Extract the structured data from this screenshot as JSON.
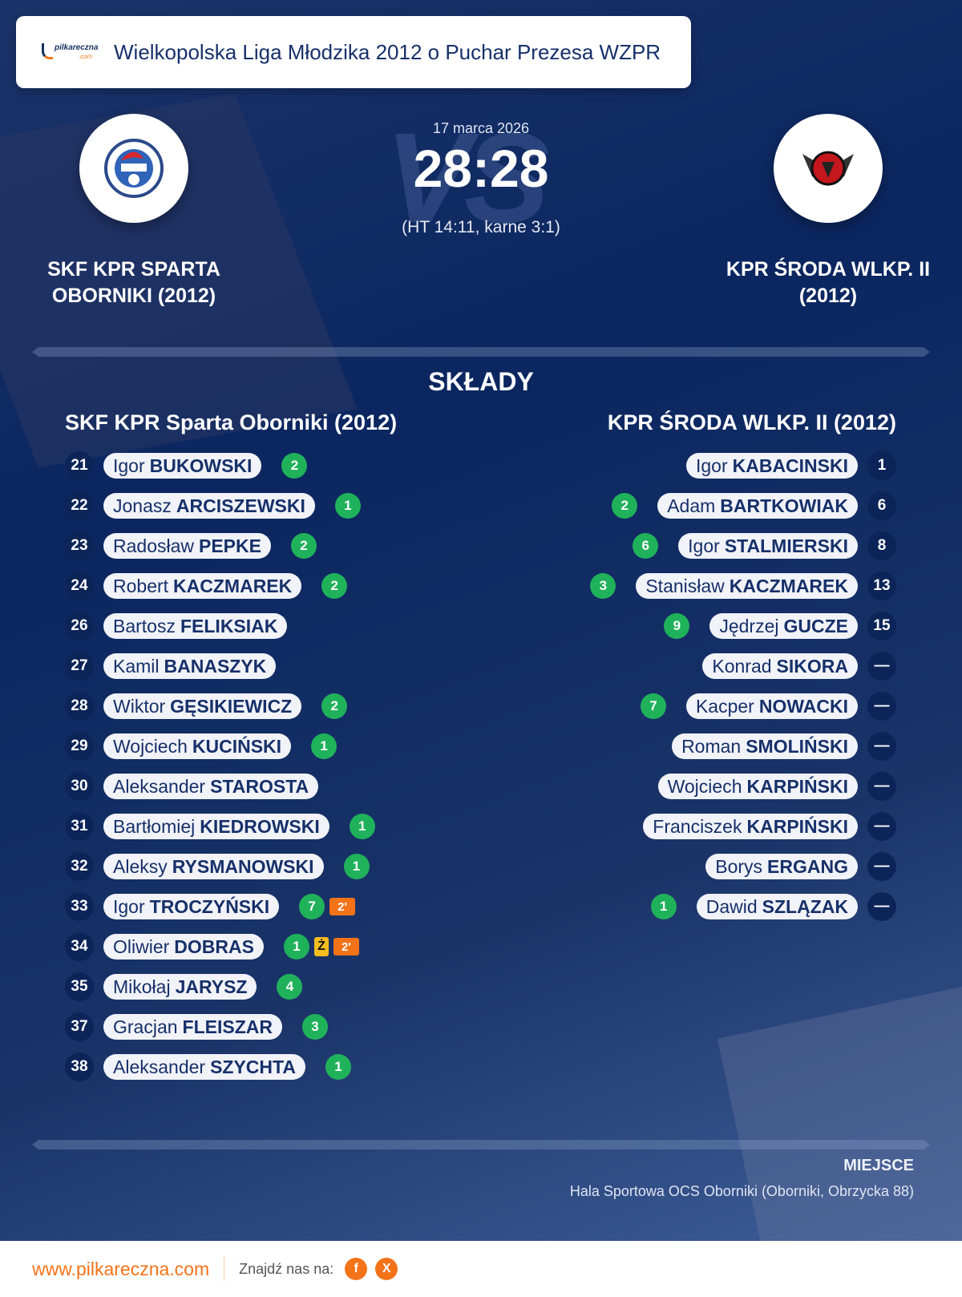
{
  "header": {
    "league": "Wielkopolska Liga Młodzika 2012 o Puchar Prezesa WZPR",
    "logo_text": "pilkareczna",
    "logo_sub": ".com"
  },
  "match": {
    "date": "17 marca 2026",
    "score": "28:28",
    "detail": "(HT 14:11, karne 3:1)",
    "vs": "VS",
    "home": {
      "name_line1": "SKF KPR SPARTA",
      "name_line2": "OBORNIKI (2012)"
    },
    "away": {
      "name_line1": "KPR ŚRODA WLKP. II",
      "name_line2": "(2012)"
    }
  },
  "lineups": {
    "title": "SKŁADY",
    "home_title": "SKF KPR Sparta Oborniki (2012)",
    "away_title": "KPR ŚRODA WLKP. II (2012)",
    "home": [
      {
        "no": "21",
        "first": "Igor",
        "last": "BUKOWSKI",
        "goals": "2"
      },
      {
        "no": "22",
        "first": "Jonasz",
        "last": "ARCISZEWSKI",
        "goals": "1"
      },
      {
        "no": "23",
        "first": "Radosław",
        "last": "PEPKE",
        "goals": "2"
      },
      {
        "no": "24",
        "first": "Robert",
        "last": "KACZMAREK",
        "goals": "2"
      },
      {
        "no": "26",
        "first": "Bartosz",
        "last": "FELIKSIAK"
      },
      {
        "no": "27",
        "first": "Kamil",
        "last": "BANASZYK"
      },
      {
        "no": "28",
        "first": "Wiktor",
        "last": "GĘSIKIEWICZ",
        "goals": "2"
      },
      {
        "no": "29",
        "first": "Wojciech",
        "last": "KUCIŃSKI",
        "goals": "1"
      },
      {
        "no": "30",
        "first": "Aleksander",
        "last": "STAROSTA"
      },
      {
        "no": "31",
        "first": "Bartłomiej",
        "last": "KIEDROWSKI",
        "goals": "1"
      },
      {
        "no": "32",
        "first": "Aleksy",
        "last": "RYSMANOWSKI",
        "goals": "1"
      },
      {
        "no": "33",
        "first": "Igor",
        "last": "TROCZYŃSKI",
        "goals": "7",
        "suspension": "2'"
      },
      {
        "no": "34",
        "first": "Oliwier",
        "last": "DOBRAS",
        "goals": "1",
        "yellow": "Ż",
        "suspension": "2'"
      },
      {
        "no": "35",
        "first": "Mikołaj",
        "last": "JARYSZ",
        "goals": "4"
      },
      {
        "no": "37",
        "first": "Gracjan",
        "last": "FLEISZAR",
        "goals": "3"
      },
      {
        "no": "38",
        "first": "Aleksander",
        "last": "SZYCHTA",
        "goals": "1"
      }
    ],
    "away": [
      {
        "no": "1",
        "first": "Igor",
        "last": "KABACINSKI"
      },
      {
        "no": "6",
        "first": "Adam",
        "last": "BARTKOWIAK",
        "goals": "2"
      },
      {
        "no": "8",
        "first": "Igor",
        "last": "STALMIERSKI",
        "goals": "6"
      },
      {
        "no": "13",
        "first": "Stanisław",
        "last": "KACZMAREK",
        "goals": "3"
      },
      {
        "no": "15",
        "first": "Jędrzej",
        "last": "GUCZE",
        "goals": "9"
      },
      {
        "no": "—",
        "first": "Konrad",
        "last": "SIKORA"
      },
      {
        "no": "—",
        "first": "Kacper",
        "last": "NOWACKI",
        "goals": "7"
      },
      {
        "no": "—",
        "first": "Roman",
        "last": "SMOLIŃSKI"
      },
      {
        "no": "—",
        "first": "Wojciech",
        "last": "KARPIŃSKI"
      },
      {
        "no": "—",
        "first": "Franciszek",
        "last": "KARPIŃSKI"
      },
      {
        "no": "—",
        "first": "Borys",
        "last": "ERGANG"
      },
      {
        "no": "—",
        "first": "Dawid",
        "last": "SZLĄZAK",
        "goals": "1"
      }
    ]
  },
  "venue": {
    "label": "MIEJSCE",
    "value": "Hala Sportowa OCS Oborniki (Oborniki, Obrzycka 88)"
  },
  "footer": {
    "site": "www.pilkareczna.com",
    "find": "Znajdź nas na:",
    "facebook": "f",
    "x": "X"
  },
  "colors": {
    "goal": "#20b25b",
    "suspension": "#f47319",
    "yellow_card": "#f8bd1f",
    "accent": "#f47319",
    "navy": "#0b2660"
  }
}
